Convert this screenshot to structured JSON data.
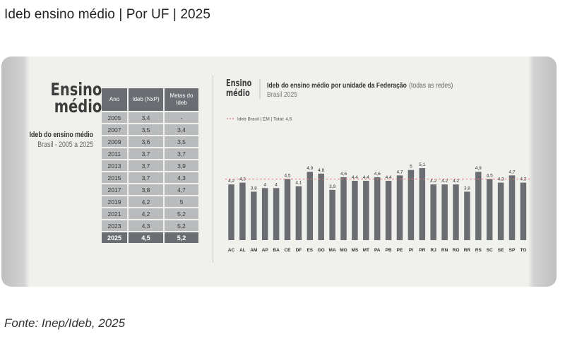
{
  "page_title": "Ideb ensino médio | Por UF | 2025",
  "source": "Fonte: Inep/Ideb, 2025",
  "left_panel": {
    "big_title_line1": "Ensino",
    "big_title_line2": "médio",
    "subtitle": "Ideb do ensino médio",
    "subtitle2": "Brasil - 2005 a 2025",
    "table_headers": [
      "Ano",
      "Ideb (NxP)",
      "Metas do Ideb"
    ],
    "table_rows": [
      [
        "2005",
        "3,4",
        "-"
      ],
      [
        "2007",
        "3,5",
        "3,4"
      ],
      [
        "2009",
        "3,6",
        "3,5"
      ],
      [
        "2011",
        "3,7",
        "3,7"
      ],
      [
        "2013",
        "3,7",
        "3,9"
      ],
      [
        "2015",
        "3,7",
        "4,3"
      ],
      [
        "2017",
        "3,8",
        "4,7"
      ],
      [
        "2019",
        "4,2",
        "5"
      ],
      [
        "2021",
        "4,2",
        "5,2"
      ],
      [
        "2023",
        "4,3",
        "5,2"
      ],
      [
        "2025",
        "4,5",
        "5,2"
      ]
    ]
  },
  "chart_data": {
    "type": "bar",
    "tag_line1": "Ensino",
    "tag_line2": "médio",
    "title": "Ideb  do ensino médio por unidade da Federação",
    "title_suffix": "(todas as redes)",
    "subtitle": "Brasil 2025",
    "reference_line": {
      "label": "Ideb Brasil | EM | Total: 4,5",
      "value": 4.5,
      "color": "#e07a7a"
    },
    "categories": [
      "AC",
      "AL",
      "AM",
      "AP",
      "BA",
      "CE",
      "DF",
      "ES",
      "GO",
      "MA",
      "MG",
      "MS",
      "MT",
      "PA",
      "PB",
      "PE",
      "PI",
      "PR",
      "RJ",
      "RN",
      "RO",
      "RR",
      "RS",
      "SC",
      "SE",
      "SP",
      "TO"
    ],
    "values": [
      4.2,
      4.3,
      3.8,
      4,
      4,
      4.5,
      4.1,
      4.9,
      4.8,
      3.9,
      4.6,
      4.4,
      4.4,
      4.6,
      4.4,
      4.7,
      5,
      5.1,
      4.2,
      4.2,
      4.2,
      3.8,
      4.9,
      4.5,
      4.3,
      4.7,
      4.3
    ],
    "value_labels": [
      "4,2",
      "4,3",
      "3,8",
      "4",
      "4",
      "4,5",
      "4,1",
      "4,9",
      "4,8",
      "3,9",
      "4,6",
      "4,4",
      "4,4",
      "4,6",
      "4,4",
      "4,7",
      "5",
      "5,1",
      "4,2",
      "4,2",
      "4,2",
      "3,8",
      "4,9",
      "4,5",
      "4,3",
      "4,7",
      "4,3"
    ],
    "bar_color": "#6a6d72",
    "grid": false
  }
}
